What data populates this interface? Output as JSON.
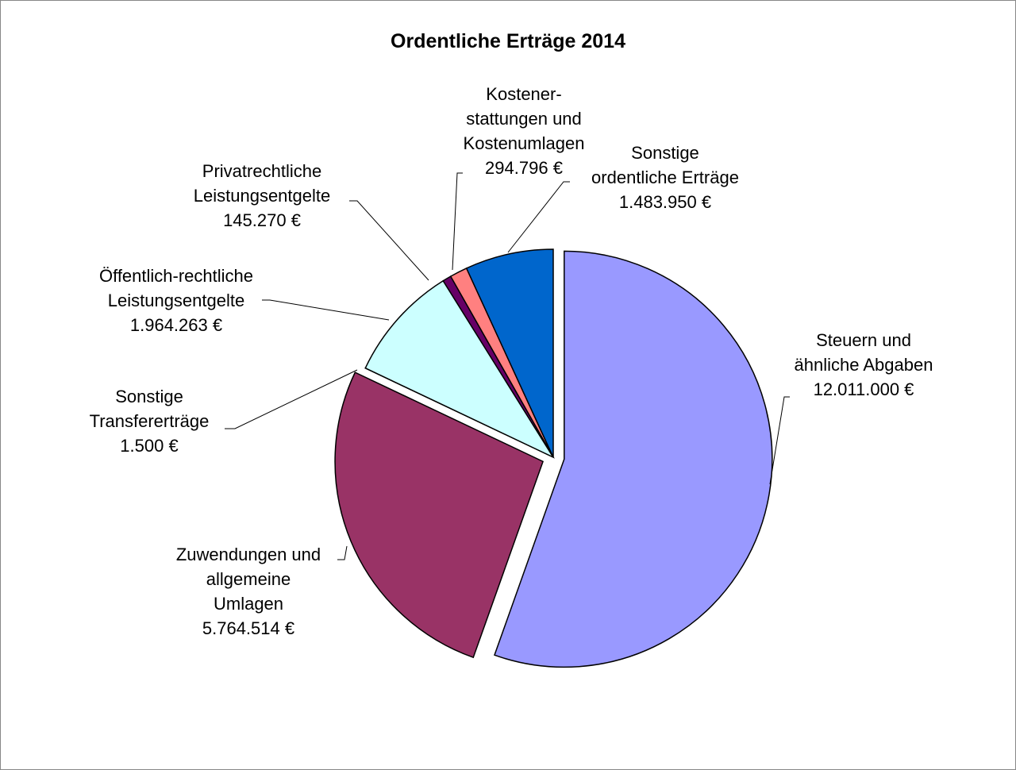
{
  "chart_data": {
    "type": "pie",
    "title": "Ordentliche Erträge 2014",
    "categories": [
      "Steuern und\nähnliche Abgaben",
      "Zuwendungen und\nallgemeine\nUmlagen",
      "Sonstige\nTransfererträge",
      "Öffentlich-rechtliche\nLeistungsentgelte",
      "Privatrechtliche\nLeistungsentgelte",
      "Kostener-\nstattungen und\nKostenumlagen",
      "Sonstige\nordentliche Erträge"
    ],
    "values": [
      12011000,
      5764514,
      1500,
      1964263,
      145270,
      294796,
      1483950
    ],
    "value_labels": [
      "12.011.000 €",
      "5.764.514 €",
      "1.500 €",
      "1.964.263 €",
      "145.270 €",
      "294.796 €",
      "1.483.950 €"
    ],
    "colors": [
      "#9999ff",
      "#993366",
      "#ffffcc",
      "#ccffff",
      "#660066",
      "#ff8080",
      "#0066cc"
    ]
  }
}
